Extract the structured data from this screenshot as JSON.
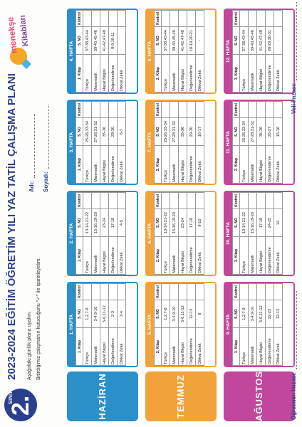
{
  "header": {
    "grade_number": "2.",
    "grade_label": "SINIF",
    "title": "2023-2024 EĞİTİM ÖĞRETİM YILI YAZ TATİL ÇALIŞMA PLANI",
    "instruction_1": "Aşağıdaki günlük plana uyalım.",
    "instruction_2": "Bitirdiğimiz çalışmanın kutucuğunu \"✓\" ile işaretleyelim.",
    "name_label": "Adı:",
    "surname_label": "Soyadı:",
    "logo_line_1": "menekşe",
    "logo_line_2": "Kitabları"
  },
  "columns": {
    "book": "Kitap",
    "page": "S. NO",
    "check": "Kontrol"
  },
  "months": [
    {
      "name": "HAZİRAN",
      "color": "#2b8fc9",
      "weeks": [
        {
          "title": "1. HAFTA",
          "book_header": "1. Kitap",
          "rows": [
            [
              "Türkçe",
              "1,2,7-8"
            ],
            [
              "Matematik",
              "3-4,9-10"
            ],
            [
              "Hayat Bilgisi",
              "5-6,11-12"
            ],
            [
              "Değerlendirme",
              "2-3"
            ],
            [
              "Dikkat Zekâ",
              "3-4"
            ]
          ]
        },
        {
          "title": "2. HAFTA",
          "book_header": "1. Kitap",
          "rows": [
            [
              "Türkçe",
              "13-14,21-22"
            ],
            [
              "Matematik",
              "15-16,19-20"
            ],
            [
              "Hayat Bilgisi",
              "23-24"
            ],
            [
              "Değerlendirme",
              "17-18"
            ],
            [
              "Dikkat Zekâ",
              "4-5"
            ]
          ]
        },
        {
          "title": "3. HAFTA",
          "book_header": "1. Kitap",
          "rows": [
            [
              "Türkçe",
              "25-26,33-34"
            ],
            [
              "Matematik",
              "27-28,31-32"
            ],
            [
              "Hayat Bilgisi",
              "35-36"
            ],
            [
              "Değerlendirme",
              "29-30"
            ],
            [
              "Dikkat Zekâ",
              "6-7"
            ]
          ]
        },
        {
          "title": "4. HAFTA",
          "book_header": "1. Kitap",
          "rows": [
            [
              "Türkçe",
              "37-38,43-44"
            ],
            [
              "Matematik",
              "39-40,45-46"
            ],
            [
              "Hayat Bilgisi",
              "41-42,47-48"
            ],
            [
              "Değerlendirme",
              "8-9,10-11"
            ],
            [
              "Dikkat Zekâ",
              ""
            ]
          ]
        }
      ]
    },
    {
      "name": "TEMMUZ",
      "color": "#f2a23a",
      "weeks": [
        {
          "title": "5. HAFTA",
          "book_header": "2. Kitap",
          "rows": [
            [
              "Türkçe",
              "1,2,7-8"
            ],
            [
              "Matematik",
              "3-4,9-10"
            ],
            [
              "Hayat Bilgisi",
              "5-6,11-12"
            ],
            [
              "Değerlendirme",
              "12-13"
            ],
            [
              "Dikkat Zekâ",
              "8"
            ]
          ]
        },
        {
          "title": "6. HAFTA",
          "book_header": "2. Kitap",
          "rows": [
            [
              "Türkçe",
              "13-14,21-22"
            ],
            [
              "Matematik",
              "15-16,19-20"
            ],
            [
              "Hayat Bilgisi",
              "23-24"
            ],
            [
              "Değerlendirme",
              "17-18"
            ],
            [
              "Dikkat Zekâ",
              "9-10"
            ]
          ]
        },
        {
          "title": "7. HAFTA",
          "book_header": "2. Kitap",
          "rows": [
            [
              "Türkçe",
              "25-26,33-34"
            ],
            [
              "Matematik",
              "27-28,31-32"
            ],
            [
              "Hayat Bilgisi",
              "35-36"
            ],
            [
              "Değerlendirme",
              "29-30"
            ],
            [
              "Dikkat Zekâ",
              "16-17"
            ]
          ]
        },
        {
          "title": "8. HAFTA",
          "book_header": "2. Kitap",
          "rows": [
            [
              "Türkçe",
              "37-38,43-44"
            ],
            [
              "Matematik",
              "39-40,45-46"
            ],
            [
              "Hayat Bilgisi",
              "41-42,47-48"
            ],
            [
              "Değerlendirme",
              "18-19,20-21"
            ],
            [
              "Dikkat Zekâ",
              "-"
            ]
          ]
        }
      ]
    },
    {
      "name": "AĞUSTOS",
      "color": "#c0479b",
      "weeks": [
        {
          "title": "9. HAFTA",
          "book_header": "3. Kitap",
          "rows": [
            [
              "Türkçe",
              "1,2,7-8"
            ],
            [
              "Matematik",
              "3-4,9-10"
            ],
            [
              "Hayat Bilgisi",
              "5-6,11-12"
            ],
            [
              "Değerlendirme",
              "22-23"
            ],
            [
              "Dikkat Zekâ",
              "12-13"
            ]
          ]
        },
        {
          "title": "10. HAFTA",
          "book_header": "3. Kitap",
          "rows": [
            [
              "Türkçe",
              "13-14,21-22"
            ],
            [
              "Matematik",
              "15-16,19-20"
            ],
            [
              "Hayat Bilgisi",
              "17-18"
            ],
            [
              "Değerlendirme",
              "24-25"
            ],
            [
              "Dikkat Zekâ",
              "14"
            ]
          ]
        },
        {
          "title": "11. HAFTA",
          "book_header": "3. Kitap",
          "rows": [
            [
              "Türkçe",
              "25-26,33-34"
            ],
            [
              "Matematik",
              "27-28,31-32"
            ],
            [
              "Hayat Bilgisi",
              "35-36"
            ],
            [
              "Değerlendirme",
              "26-27"
            ],
            [
              "Dikkat Zekâ",
              "15-16"
            ]
          ]
        },
        {
          "title": "12. HAFTA",
          "book_header": "3. Kitap",
          "rows": [
            [
              "Türkçe",
              "37-38,43-44"
            ],
            [
              "Matematik",
              "39-40,45-46"
            ],
            [
              "Hayat Bilgisi",
              "41-42,47-48"
            ],
            [
              "Değerlendirme",
              "28-29,30-31"
            ],
            [
              "Dikkat Zekâ",
              "-"
            ]
          ]
        }
      ]
    }
  ],
  "footer": {
    "teacher_label": "Öğretmen İmzası:",
    "parent_label": "Veli İmzası:"
  }
}
